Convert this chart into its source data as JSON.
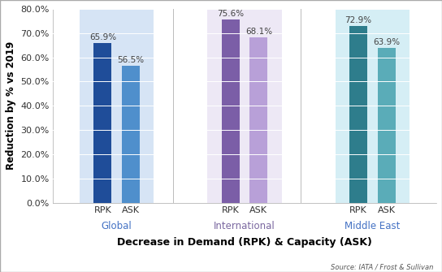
{
  "groups": [
    "Global",
    "International",
    "Middle East"
  ],
  "rpk_values": [
    65.9,
    75.6,
    72.9
  ],
  "ask_values": [
    56.5,
    68.1,
    63.9
  ],
  "rpk_colors": [
    "#1F4D99",
    "#7B5EA7",
    "#2E7D8C"
  ],
  "ask_colors": [
    "#4F8FCC",
    "#B8A0D8",
    "#5AACB8"
  ],
  "bg_colors": [
    "#D6E4F5",
    "#EDE8F5",
    "#D5EEF5"
  ],
  "group_label_colors": [
    "#4472C4",
    "#7B68A0",
    "#4472C4"
  ],
  "ylabel": "Reduction by % vs 2019",
  "xlabel": "Decrease in Demand (RPK) & Capacity (ASK)",
  "source": "Source: IATA / Frost & Sullivan",
  "ylim_max": 0.8,
  "yticks": [
    0.0,
    0.1,
    0.2,
    0.3,
    0.4,
    0.5,
    0.6,
    0.7,
    0.8
  ],
  "ytick_labels": [
    "0.0%",
    "10.0%",
    "20.0%",
    "30.0%",
    "40.0%",
    "50.0%",
    "60.0%",
    "70.0%",
    "80.0%"
  ],
  "bar_width": 0.28,
  "label_color": "#404040"
}
